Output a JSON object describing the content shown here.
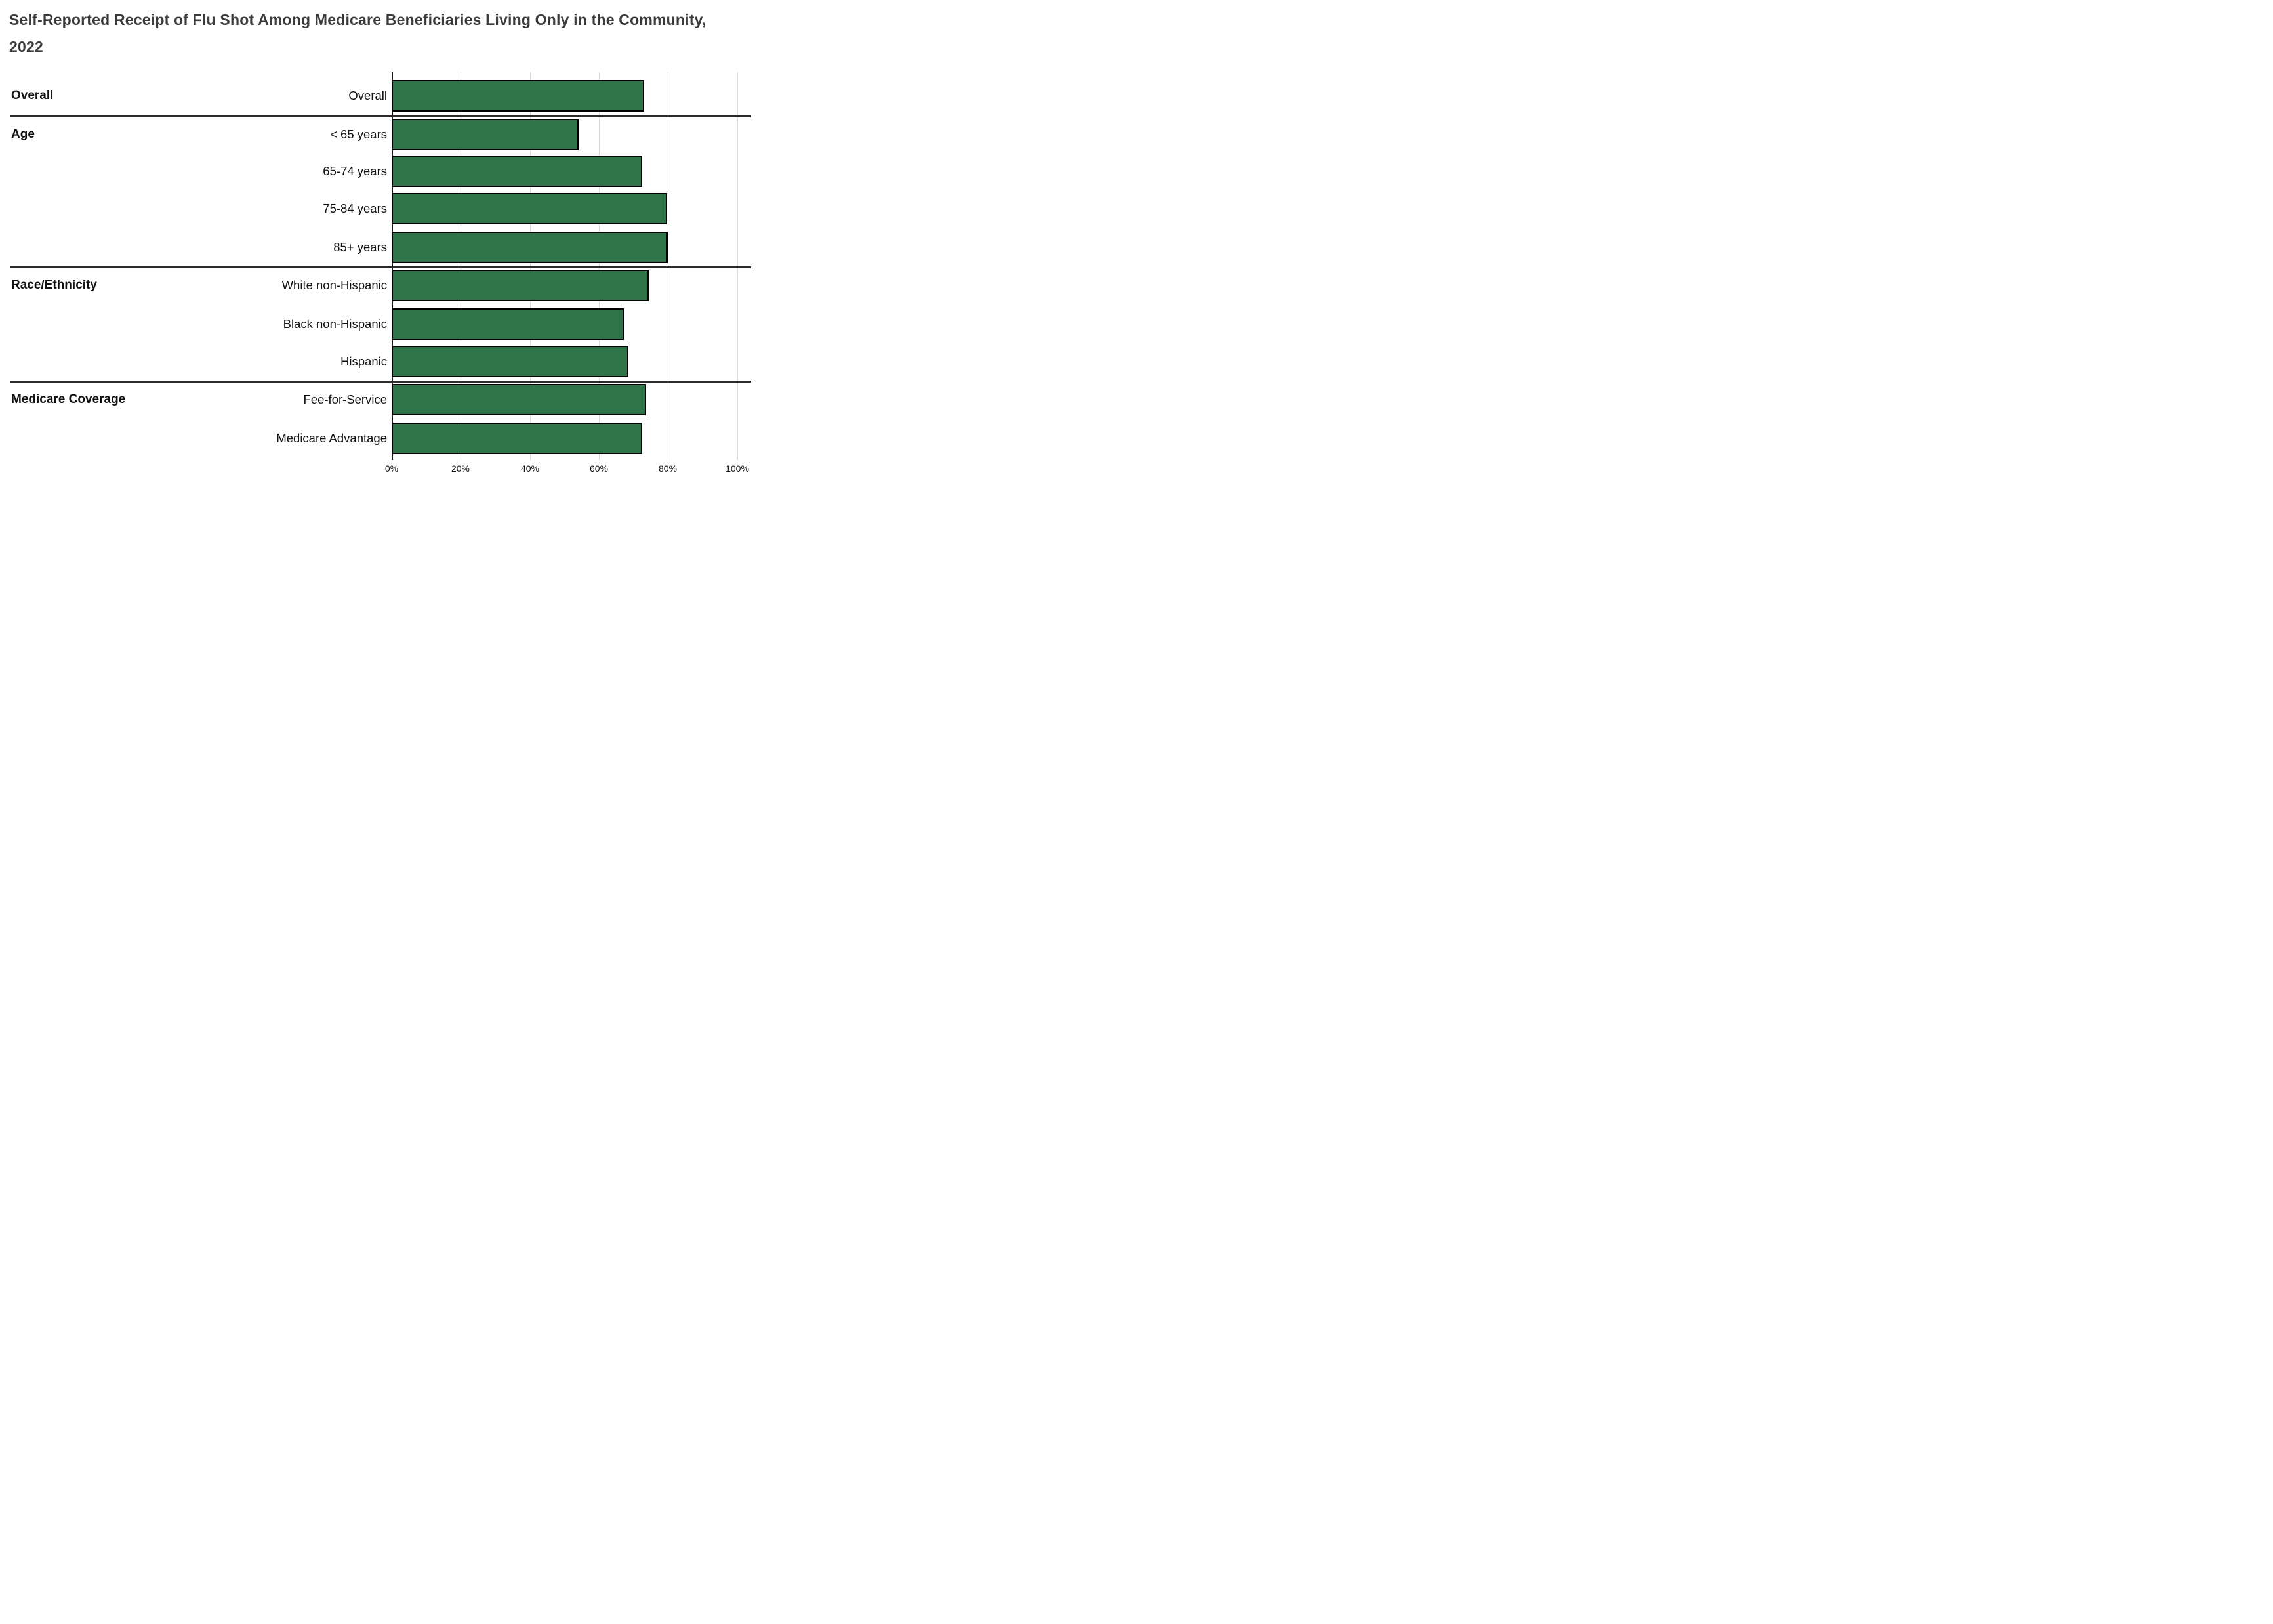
{
  "title": "Self-Reported Receipt of Flu Shot Among Medicare Beneficiaries Living Only in the Community, 2022",
  "colors": {
    "bar_fill": "#2F7449",
    "bar_border": "#000000",
    "gridline": "#d9d9d9",
    "separator": "#2b2b2b",
    "title_text": "#3b3b3b",
    "label_text": "#111111"
  },
  "chart_data": {
    "type": "bar",
    "orientation": "horizontal",
    "title": "Self-Reported Receipt of Flu Shot Among Medicare Beneficiaries Living Only in the Community, 2022",
    "xlabel": "",
    "ylabel": "",
    "xlim": [
      0,
      100
    ],
    "grid": true,
    "x_ticks": [
      "0%",
      "20%",
      "40%",
      "60%",
      "80%",
      "100%"
    ],
    "unit": "percent",
    "groups": [
      {
        "label": "Overall",
        "rows": [
          {
            "label": "Overall",
            "value": 73.0
          }
        ]
      },
      {
        "label": "Age",
        "rows": [
          {
            "label": "< 65 years",
            "value": 54.1
          },
          {
            "label": "65-74 years",
            "value": 72.5
          },
          {
            "label": "75-84 years",
            "value": 79.7
          },
          {
            "label": "85+ years",
            "value": 79.8
          }
        ]
      },
      {
        "label": "Race/Ethnicity",
        "rows": [
          {
            "label": "White non-Hispanic",
            "value": 74.4
          },
          {
            "label": "Black non-Hispanic",
            "value": 67.2
          },
          {
            "label": "Hispanic",
            "value": 68.5
          }
        ]
      },
      {
        "label": "Medicare Coverage",
        "rows": [
          {
            "label": "Fee-for-Service",
            "value": 73.6
          },
          {
            "label": "Medicare Advantage",
            "value": 72.5
          }
        ]
      }
    ]
  }
}
